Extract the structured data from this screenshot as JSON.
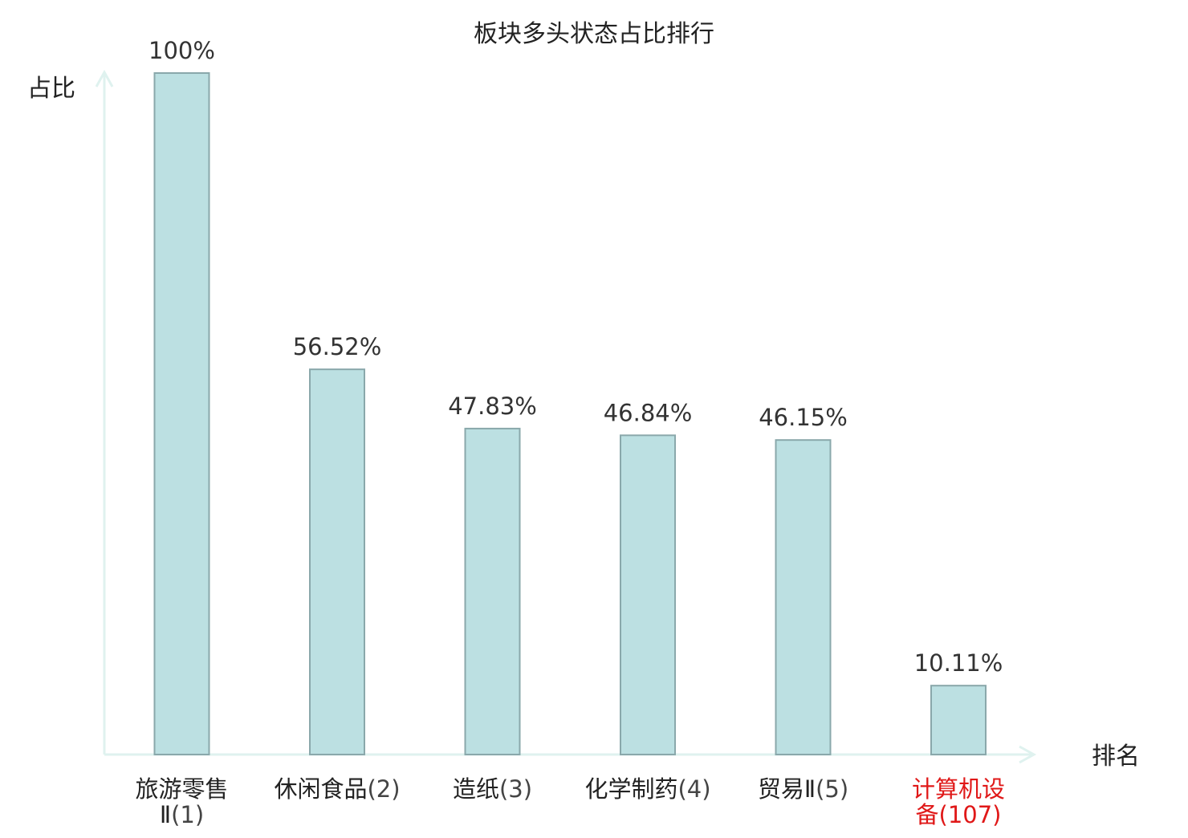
{
  "chart_data": {
    "type": "bar",
    "title": "板块多头状态占比排行",
    "ylabel": "占比",
    "xlabel": "排名",
    "ylim": [
      0,
      100
    ],
    "grid": false,
    "categories": [
      {
        "name": "旅游零售Ⅱ",
        "rank": "(1)",
        "highlight": false
      },
      {
        "name": "休闲食品",
        "rank": "(2)",
        "highlight": false
      },
      {
        "name": "造纸",
        "rank": "(3)",
        "highlight": false
      },
      {
        "name": "化学制药",
        "rank": "(4)",
        "highlight": false
      },
      {
        "name": "贸易Ⅱ",
        "rank": "(5)",
        "highlight": false
      },
      {
        "name": "计算机设备",
        "rank": "(107)",
        "highlight": true
      }
    ],
    "values": [
      100,
      56.52,
      47.83,
      46.84,
      46.15,
      10.11
    ],
    "value_labels": [
      "100%",
      "56.52%",
      "47.83%",
      "46.84%",
      "46.15%",
      "10.11%"
    ]
  },
  "colors": {
    "bar_fill": "#bce0e2",
    "bar_stroke": "#8aa8ab",
    "axis": "#dff2ef",
    "text": "#222222",
    "value_text": "#333333",
    "highlight": "#e01818"
  }
}
